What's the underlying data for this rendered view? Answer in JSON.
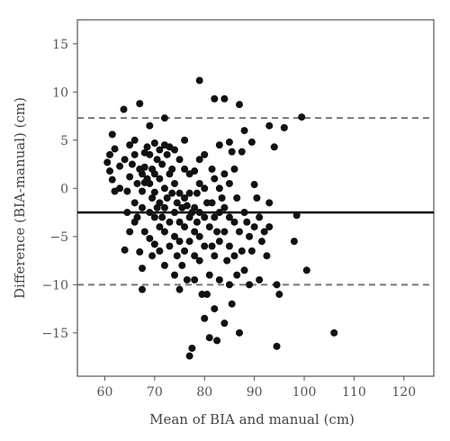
{
  "chart_data": {
    "type": "scatter",
    "title": "",
    "xlabel": "Mean of BIA and manual (cm)",
    "ylabel": "Difference (BIA-manual) (cm)",
    "xlim": [
      54.5,
      126
    ],
    "ylim": [
      -19.5,
      17.5
    ],
    "xticks": [
      60,
      70,
      80,
      90,
      100,
      110,
      120
    ],
    "yticks": [
      -15,
      -10,
      -5,
      0,
      5,
      10,
      15
    ],
    "grid": false,
    "legend": "none",
    "reference_lines": [
      {
        "role": "mean-difference",
        "y": -2.5,
        "style": "solid",
        "color": "#111111"
      },
      {
        "role": "upper-limit",
        "y": 7.3,
        "style": "dashed",
        "color": "#777777"
      },
      {
        "role": "lower-limit",
        "y": -10.0,
        "style": "dashed",
        "color": "#777777"
      }
    ],
    "series": [
      {
        "color": "#111111",
        "points": [
          [
            60.5,
            2.7
          ],
          [
            61,
            3.5
          ],
          [
            61,
            1.8
          ],
          [
            61.5,
            0.9
          ],
          [
            62,
            4.1
          ],
          [
            62,
            -0.3
          ],
          [
            61.5,
            5.6
          ],
          [
            63,
            2.3
          ],
          [
            63,
            0
          ],
          [
            63.8,
            8.2
          ],
          [
            64,
            3
          ],
          [
            64.5,
            -0.3
          ],
          [
            64.5,
            -2.5
          ],
          [
            64,
            -6.4
          ],
          [
            65,
            4.5
          ],
          [
            65,
            1.2
          ],
          [
            65,
            -4.5
          ],
          [
            65.5,
            2.5
          ],
          [
            66,
            5
          ],
          [
            66,
            3.5
          ],
          [
            66,
            -1.5
          ],
          [
            66.5,
            0.5
          ],
          [
            66.5,
            -3
          ],
          [
            66,
            -3.5
          ],
          [
            67,
            8.8
          ],
          [
            67,
            2
          ],
          [
            67,
            -6.6
          ],
          [
            67.5,
            1.5
          ],
          [
            67.5,
            -0.3
          ],
          [
            67.5,
            -2
          ],
          [
            67.5,
            -8.3
          ],
          [
            67.5,
            -10.5
          ],
          [
            68,
            3.7
          ],
          [
            68,
            2.2
          ],
          [
            68,
            0.6
          ],
          [
            68,
            -4.5
          ],
          [
            68.5,
            4.3
          ],
          [
            68.5,
            1
          ],
          [
            69,
            6.5
          ],
          [
            69,
            3.5
          ],
          [
            69,
            0.5
          ],
          [
            69,
            -2.5
          ],
          [
            69,
            -5.2
          ],
          [
            69.5,
            2
          ],
          [
            69.5,
            -1
          ],
          [
            69.5,
            -7
          ],
          [
            70,
            4.7
          ],
          [
            70,
            1.5
          ],
          [
            70,
            -0.4
          ],
          [
            70,
            -3
          ],
          [
            70,
            -5.8
          ],
          [
            70.5,
            3
          ],
          [
            70.5,
            -2
          ],
          [
            71,
            4
          ],
          [
            71,
            1
          ],
          [
            71,
            -1.5
          ],
          [
            71,
            -4
          ],
          [
            71,
            -6.5
          ],
          [
            71.5,
            2.5
          ],
          [
            71.5,
            -3
          ],
          [
            72,
            7.3
          ],
          [
            72,
            4.5
          ],
          [
            72,
            0
          ],
          [
            72,
            -2
          ],
          [
            72,
            -4.5
          ],
          [
            72,
            -8
          ],
          [
            72.5,
            3.5
          ],
          [
            72.5,
            -1
          ],
          [
            73,
            4.3
          ],
          [
            73,
            1.5
          ],
          [
            73,
            -3.5
          ],
          [
            73,
            -6
          ],
          [
            73.5,
            2
          ],
          [
            73.5,
            -0.5
          ],
          [
            74,
            4
          ],
          [
            74,
            0.5
          ],
          [
            74,
            -2.5
          ],
          [
            74,
            -5
          ],
          [
            74,
            -9
          ],
          [
            74.5,
            -1.5
          ],
          [
            74.5,
            -7
          ],
          [
            75,
            3
          ],
          [
            75,
            -0.5
          ],
          [
            75,
            -3.5
          ],
          [
            75,
            -5.5
          ],
          [
            75,
            -10.5
          ],
          [
            75.5,
            -2
          ],
          [
            75.5,
            -8
          ],
          [
            76,
            5
          ],
          [
            76,
            2
          ],
          [
            76,
            -1
          ],
          [
            76,
            -4
          ],
          [
            76,
            -6.5
          ],
          [
            76.5,
            -1.8
          ],
          [
            76.5,
            -9.5
          ],
          [
            77,
            1.5
          ],
          [
            77,
            -0.5
          ],
          [
            77,
            -3
          ],
          [
            77,
            -5.5
          ],
          [
            77,
            -17.4
          ],
          [
            77.5,
            -2.5
          ],
          [
            77.5,
            -16.6
          ],
          [
            78,
            1.8
          ],
          [
            78,
            -2
          ],
          [
            78,
            -4.5
          ],
          [
            78,
            -7
          ],
          [
            78,
            -9.5
          ],
          [
            78.5,
            -0.5
          ],
          [
            78.5,
            -3.5
          ],
          [
            79,
            11.2
          ],
          [
            79,
            3
          ],
          [
            79,
            0.5
          ],
          [
            79,
            -2.5
          ],
          [
            79,
            -5
          ],
          [
            79,
            -7.5
          ],
          [
            79.5,
            -11
          ],
          [
            80,
            3.5
          ],
          [
            80,
            0
          ],
          [
            80,
            -3
          ],
          [
            80,
            -6
          ],
          [
            80,
            -13.5
          ],
          [
            80.5,
            -1.5
          ],
          [
            80.5,
            -11
          ],
          [
            81,
            -4
          ],
          [
            81,
            -9
          ],
          [
            81,
            -15.5
          ],
          [
            81.5,
            2
          ],
          [
            81.5,
            -1.5
          ],
          [
            81.5,
            -6
          ],
          [
            82,
            9.3
          ],
          [
            82,
            1
          ],
          [
            82,
            -3
          ],
          [
            82,
            -7
          ],
          [
            82,
            -12.5
          ],
          [
            82.5,
            -4.5
          ],
          [
            82.5,
            -15.8
          ],
          [
            83,
            4.5
          ],
          [
            83,
            0
          ],
          [
            83,
            -2.5
          ],
          [
            83,
            -5.5
          ],
          [
            83,
            -9.5
          ],
          [
            83.5,
            -1
          ],
          [
            84,
            9.3
          ],
          [
            84,
            1.5
          ],
          [
            84,
            -2
          ],
          [
            84,
            -4.5
          ],
          [
            84,
            -14
          ],
          [
            84.5,
            -7.5
          ],
          [
            85,
            4.8
          ],
          [
            85,
            0.5
          ],
          [
            85,
            -3
          ],
          [
            85,
            -6
          ],
          [
            85,
            -10
          ],
          [
            85.5,
            3.8
          ],
          [
            85.5,
            -12
          ],
          [
            86,
            2
          ],
          [
            86,
            -3.5
          ],
          [
            86,
            -7
          ],
          [
            86.5,
            -1
          ],
          [
            86.5,
            -9
          ],
          [
            87,
            8.7
          ],
          [
            87,
            -4.5
          ],
          [
            87,
            -15
          ],
          [
            87.5,
            3.8
          ],
          [
            87.5,
            -6.5
          ],
          [
            88,
            6
          ],
          [
            88,
            -2.5
          ],
          [
            88,
            -8.5
          ],
          [
            88.5,
            -3.5
          ],
          [
            89,
            -5
          ],
          [
            89,
            -10
          ],
          [
            89.5,
            4.8
          ],
          [
            89.5,
            -6.5
          ],
          [
            90,
            0.4
          ],
          [
            90,
            -4
          ],
          [
            90.5,
            -1
          ],
          [
            91,
            -3
          ],
          [
            91,
            -9.5
          ],
          [
            91.5,
            -5.5
          ],
          [
            92,
            -4.5
          ],
          [
            92.5,
            -7
          ],
          [
            93,
            6.5
          ],
          [
            93,
            -1.5
          ],
          [
            93,
            -4
          ],
          [
            94,
            4.3
          ],
          [
            94.5,
            -10
          ],
          [
            94.5,
            -16.4
          ],
          [
            95,
            -11
          ],
          [
            96,
            6.3
          ],
          [
            98,
            -5.5
          ],
          [
            98.5,
            -2.8
          ],
          [
            99.5,
            7.4
          ],
          [
            100.5,
            -8.5
          ],
          [
            106,
            -15
          ]
        ]
      }
    ]
  }
}
